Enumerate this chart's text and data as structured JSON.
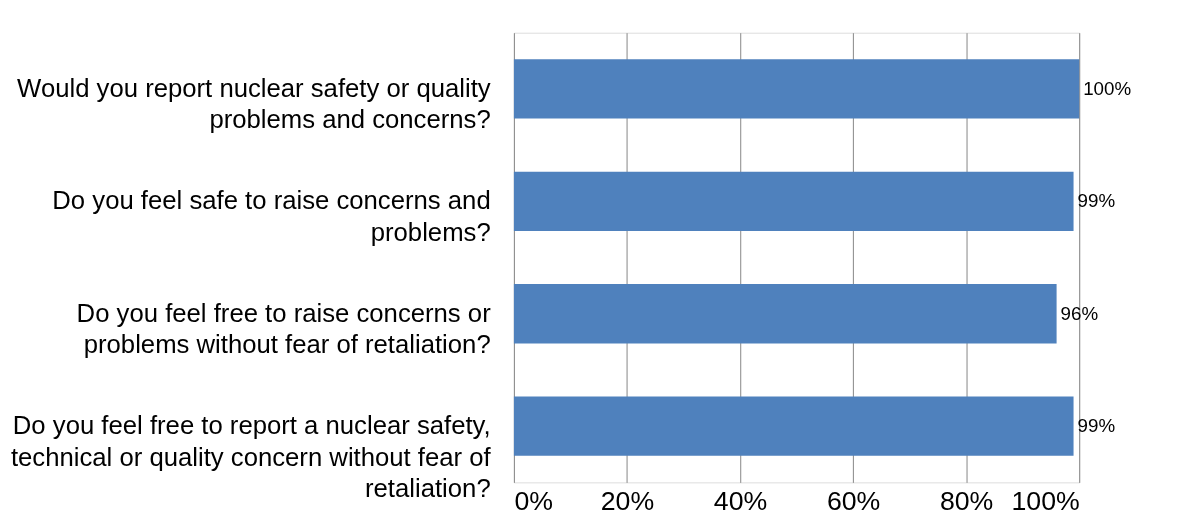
{
  "chart_data": {
    "type": "bar",
    "orientation": "horizontal",
    "categories": [
      "Would you report nuclear safety or quality problems and concerns?",
      "Do you feel safe to raise concerns and problems?",
      "Do you feel free to raise concerns or problems without fear of retaliation?",
      "Do you feel free to report a nuclear safety, technical or quality concern without fear of retaliation?"
    ],
    "values": [
      100,
      99,
      96,
      99
    ],
    "value_labels": [
      "100%",
      "99%",
      "96%",
      "99%"
    ],
    "color": "#4f81bd",
    "xlim": [
      0,
      100
    ],
    "xticks": [
      {
        "value": 0,
        "label": "0%"
      },
      {
        "value": 20,
        "label": "20%"
      },
      {
        "value": 40,
        "label": "40%"
      },
      {
        "value": 60,
        "label": "60%"
      },
      {
        "value": 80,
        "label": "80%"
      },
      {
        "value": 100,
        "label": "100%"
      }
    ],
    "grid": "x"
  }
}
